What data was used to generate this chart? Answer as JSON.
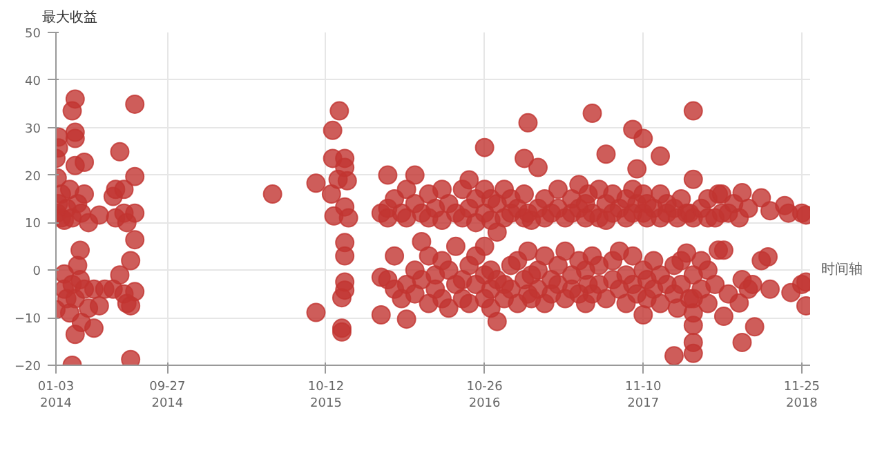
{
  "chart_data": {
    "type": "scatter",
    "ylabel": "最大收益",
    "xlabel": "时间轴",
    "marker": "circle",
    "grid": true,
    "ylim": [
      -20,
      50
    ],
    "yticks": [
      -20,
      -10,
      0,
      10,
      20,
      30,
      40,
      50
    ],
    "xlim": [
      "2014-01-03",
      "2018-12-15"
    ],
    "xticks": [
      {
        "value": "2014-01-03",
        "label": "01-03\n2014"
      },
      {
        "value": "2014-09-27",
        "label": "09-27\n2014"
      },
      {
        "value": "2015-10-12",
        "label": "10-12\n2015"
      },
      {
        "value": "2016-10-26",
        "label": "10-26\n2016"
      },
      {
        "value": "2017-11-10",
        "label": "11-10\n2017"
      },
      {
        "value": "2018-11-25",
        "label": "11-25\n2018"
      }
    ],
    "series": [
      {
        "color": "#c23531",
        "x": [
          "2014-01-03",
          "2014-01-06",
          "2014-01-09",
          "2014-01-09",
          "2014-01-03",
          "2014-01-06",
          "2014-01-09",
          "2014-01-16",
          "2014-01-16",
          "2014-01-23",
          "2014-01-23",
          "2014-01-23",
          "2014-01-29",
          "2014-01-29",
          "2014-02-05",
          "2014-02-05",
          "2014-02-11",
          "2014-02-11",
          "2014-02-11",
          "2014-02-11",
          "2014-02-18",
          "2014-02-18",
          "2014-02-18",
          "2014-02-18",
          "2014-02-18",
          "2014-02-18",
          "2014-02-24",
          "2014-02-24",
          "2014-03-02",
          "2014-03-02",
          "2014-03-05",
          "2014-03-05",
          "2014-03-12",
          "2014-03-12",
          "2014-03-12",
          "2014-03-22",
          "2014-03-22",
          "2014-04-04",
          "2014-04-04",
          "2014-04-17",
          "2014-04-17",
          "2014-04-30",
          "2014-05-20",
          "2014-05-20",
          "2014-05-26",
          "2014-05-26",
          "2014-06-05",
          "2014-06-05",
          "2014-06-15",
          "2014-06-15",
          "2014-06-15",
          "2014-06-22",
          "2014-06-22",
          "2014-07-01",
          "2014-07-01",
          "2014-07-01",
          "2014-07-11",
          "2014-07-11",
          "2014-07-11",
          "2014-07-11",
          "2014-07-11",
          "2015-06-06",
          "2015-09-18",
          "2015-09-18",
          "2015-10-25",
          "2015-10-28",
          "2015-10-28",
          "2015-10-31",
          "2015-11-10",
          "2015-11-13",
          "2015-11-19",
          "2015-11-19",
          "2015-11-19",
          "2015-11-26",
          "2015-11-26",
          "2015-11-26",
          "2015-11-26",
          "2015-11-26",
          "2015-11-26",
          "2015-11-26",
          "2015-12-02",
          "2015-12-05",
          "2016-02-21",
          "2016-02-21",
          "2016-02-21",
          "2016-03-08",
          "2016-03-08",
          "2016-03-08",
          "2016-03-08",
          "2016-03-24",
          "2016-03-24",
          "2016-03-24",
          "2016-04-10",
          "2016-04-10",
          "2016-04-22",
          "2016-04-22",
          "2016-04-22",
          "2016-04-22",
          "2016-05-12",
          "2016-05-12",
          "2016-05-12",
          "2016-05-12",
          "2016-05-28",
          "2016-05-28",
          "2016-05-28",
          "2016-06-14",
          "2016-06-14",
          "2016-06-14",
          "2016-06-14",
          "2016-06-30",
          "2016-06-30",
          "2016-06-30",
          "2016-07-16",
          "2016-07-16",
          "2016-07-16",
          "2016-07-16",
          "2016-08-01",
          "2016-08-01",
          "2016-08-01",
          "2016-08-18",
          "2016-08-18",
          "2016-08-18",
          "2016-09-03",
          "2016-09-03",
          "2016-09-03",
          "2016-09-03",
          "2016-09-19",
          "2016-09-19",
          "2016-09-19",
          "2016-09-19",
          "2016-10-05",
          "2016-10-05",
          "2016-10-05",
          "2016-10-05",
          "2016-10-26",
          "2016-10-26",
          "2016-10-26",
          "2016-10-26",
          "2016-10-26",
          "2016-10-26",
          "2016-11-10",
          "2016-11-10",
          "2016-11-10",
          "2016-11-10",
          "2016-11-10",
          "2016-11-25",
          "2016-11-25",
          "2016-11-25",
          "2016-11-25",
          "2016-12-12",
          "2016-12-12",
          "2016-12-12",
          "2016-12-12",
          "2016-12-28",
          "2016-12-28",
          "2016-12-28",
          "2016-12-28",
          "2017-01-13",
          "2017-01-13",
          "2017-01-13",
          "2017-01-29",
          "2017-01-29",
          "2017-01-29",
          "2017-01-29",
          "2017-02-07",
          "2017-02-07",
          "2017-02-07",
          "2017-02-07",
          "2017-02-15",
          "2017-02-15",
          "2017-02-15",
          "2017-03-03",
          "2017-03-03",
          "2017-03-03",
          "2017-03-03",
          "2017-03-19",
          "2017-03-19",
          "2017-03-19",
          "2017-03-19",
          "2017-04-04",
          "2017-04-04",
          "2017-04-04",
          "2017-04-20",
          "2017-04-20",
          "2017-04-20",
          "2017-04-20",
          "2017-05-07",
          "2017-05-07",
          "2017-05-07",
          "2017-05-23",
          "2017-05-23",
          "2017-05-23",
          "2017-05-23",
          "2017-06-09",
          "2017-06-09",
          "2017-06-09",
          "2017-06-09",
          "2017-06-25",
          "2017-06-25",
          "2017-06-25",
          "2017-06-25",
          "2017-07-01",
          "2017-07-01",
          "2017-07-11",
          "2017-07-11",
          "2017-07-11",
          "2017-07-11",
          "2017-07-27",
          "2017-07-27",
          "2017-07-27",
          "2017-07-27",
          "2017-08-13",
          "2017-08-13",
          "2017-08-13",
          "2017-08-13",
          "2017-08-29",
          "2017-08-29",
          "2017-08-29",
          "2017-08-29",
          "2017-09-14",
          "2017-09-14",
          "2017-09-14",
          "2017-09-30",
          "2017-09-30",
          "2017-09-30",
          "2017-09-30",
          "2017-10-16",
          "2017-10-16",
          "2017-10-16",
          "2017-10-16",
          "2017-10-16",
          "2017-10-26",
          "2017-10-26",
          "2017-10-26",
          "2017-11-10",
          "2017-11-10",
          "2017-11-10",
          "2017-11-10",
          "2017-11-10",
          "2017-11-19",
          "2017-11-19",
          "2017-11-19",
          "2017-11-19",
          "2017-12-05",
          "2017-12-05",
          "2017-12-05",
          "2017-12-21",
          "2017-12-21",
          "2017-12-21",
          "2017-12-21",
          "2017-12-21",
          "2018-01-06",
          "2018-01-06",
          "2018-01-06",
          "2018-01-23",
          "2018-01-23",
          "2018-01-23",
          "2018-01-23",
          "2018-01-31",
          "2018-01-31",
          "2018-02-09",
          "2018-02-09",
          "2018-02-09",
          "2018-02-22",
          "2018-02-22",
          "2018-03-01",
          "2018-03-01",
          "2018-03-10",
          "2018-03-10",
          "2018-03-10",
          "2018-03-10",
          "2018-03-10",
          "2018-03-10",
          "2018-03-10",
          "2018-03-10",
          "2018-03-10",
          "2018-03-29",
          "2018-03-29",
          "2018-03-29",
          "2018-04-14",
          "2018-04-14",
          "2018-04-14",
          "2018-04-14",
          "2018-05-01",
          "2018-05-01",
          "2018-05-09",
          "2018-05-09",
          "2018-05-17",
          "2018-05-17",
          "2018-05-22",
          "2018-05-22",
          "2018-06-02",
          "2018-06-02",
          "2018-06-15",
          "2018-06-28",
          "2018-06-28",
          "2018-07-05",
          "2018-07-05",
          "2018-07-05",
          "2018-07-20",
          "2018-07-20",
          "2018-07-30",
          "2018-08-04",
          "2018-08-20",
          "2018-08-20",
          "2018-09-05",
          "2018-09-10",
          "2018-09-10",
          "2018-10-15",
          "2018-10-24",
          "2018-10-30",
          "2018-11-25",
          "2018-11-25",
          "2018-12-05",
          "2018-12-05",
          "2018-12-05"
        ],
        "values": [
          -8.3,
          19.4,
          28,
          25.7,
          23.5,
          12,
          14,
          11,
          16,
          10.5,
          -0.8,
          -4,
          13,
          -6,
          17,
          -9,
          33.5,
          -20,
          11,
          -3,
          36,
          29,
          27.7,
          22,
          -13.5,
          -6,
          14,
          1,
          4.2,
          -2,
          -11,
          12,
          22.7,
          16,
          -4,
          10,
          -8,
          -12.2,
          -4,
          11.6,
          -7.5,
          -4,
          15.5,
          -4,
          17,
          11,
          24.9,
          -1,
          17,
          12,
          -5,
          10,
          -7,
          -18.8,
          2,
          -7.5,
          34.9,
          19.7,
          12,
          6.4,
          -4.5,
          16,
          -8.9,
          18.3,
          16,
          29.4,
          23.5,
          11.4,
          19.1,
          33.5,
          -5.8,
          -12.2,
          -13,
          23.5,
          21.6,
          13.3,
          5.8,
          3,
          -2.5,
          -4.2,
          18.8,
          11,
          12,
          -1.5,
          -9.4,
          20,
          13,
          11,
          -2,
          15,
          3,
          -4,
          12,
          -6,
          17,
          11,
          -3,
          -10.3,
          20,
          14,
          0,
          -5,
          12,
          6,
          -2,
          16,
          11,
          3,
          -7,
          13,
          -1,
          -4,
          17,
          10.5,
          2,
          -6,
          14,
          0,
          -8,
          12,
          5,
          -3,
          17,
          11,
          -2,
          -6,
          19,
          13,
          1,
          -7,
          15,
          10,
          3,
          -3,
          25.8,
          17,
          12,
          5,
          -1,
          -6,
          15,
          10.5,
          0,
          -4,
          -8,
          14,
          8,
          -2,
          -10.8,
          17,
          11,
          -3,
          -6,
          15,
          12,
          1,
          -4,
          13,
          2,
          -7,
          23.5,
          16,
          11,
          -2,
          31,
          12,
          4,
          -5,
          10.5,
          -1,
          -6,
          21.6,
          13,
          0,
          -4,
          15,
          11,
          3,
          -7,
          12,
          -2,
          -5,
          17,
          13,
          1,
          -3,
          11,
          4,
          -6,
          15,
          12,
          -1,
          -4,
          18,
          13,
          2,
          -5,
          14,
          11,
          0,
          -7,
          16,
          -3,
          33,
          12,
          3,
          -5,
          17,
          11,
          1,
          -3,
          24.4,
          14,
          10.5,
          -6,
          16,
          12,
          2,
          -2,
          13,
          4,
          -4,
          15,
          11,
          -1,
          -7,
          29.6,
          17,
          12,
          3,
          -3,
          21.3,
          14,
          -5,
          27.7,
          16,
          12,
          0,
          -9.4,
          14,
          11,
          -2,
          -6,
          13,
          2,
          -4,
          24,
          16,
          11,
          -1,
          -7,
          14,
          12,
          -3,
          -18,
          13,
          -5,
          1,
          11,
          -8,
          15,
          2,
          -3,
          3.6,
          12,
          12,
          -6,
          19.1,
          33.5,
          11,
          -1,
          -6,
          -11.6,
          -15.2,
          -17.5,
          -9,
          13,
          2,
          -4,
          15,
          11,
          0,
          -7,
          11,
          -3,
          16,
          4.2,
          16,
          12,
          4.2,
          -9.7,
          12,
          -5,
          14,
          -6.9,
          11,
          16.3,
          -15.2,
          -2,
          13,
          -4,
          -3,
          -11.9,
          2,
          15.2,
          2.8,
          12.5,
          -4,
          13.6,
          12,
          -4.7,
          -3,
          12,
          -7.5,
          11.6,
          -2.5
        ]
      }
    ]
  }
}
